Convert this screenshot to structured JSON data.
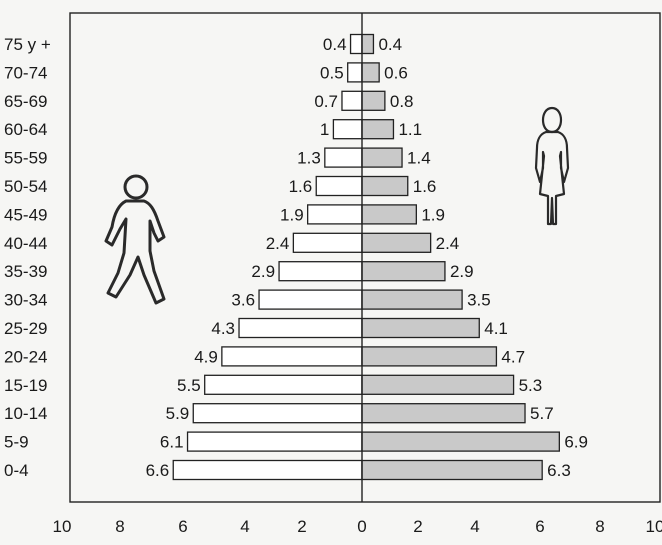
{
  "chart_data": {
    "type": "bar",
    "orientation": "horizontal",
    "layout": "population-pyramid",
    "categories": [
      "75 y +",
      "70-74",
      "65-69",
      "60-64",
      "55-59",
      "50-54",
      "45-49",
      "40-44",
      "35-39",
      "30-34",
      "25-29",
      "20-24",
      "15-19",
      "10-14",
      "5-9",
      "0-4"
    ],
    "series": [
      {
        "side": "left",
        "values": [
          0.4,
          0.5,
          0.7,
          1,
          1.3,
          1.6,
          1.9,
          2.4,
          2.9,
          3.6,
          4.3,
          4.9,
          5.5,
          5.9,
          6.1,
          6.6
        ],
        "labels": [
          "0.4",
          "0.5",
          "0.7",
          "1",
          "1.3",
          "1.6",
          "1.9",
          "2.4",
          "2.9",
          "3.6",
          "4.3",
          "4.9",
          "5.5",
          "5.9",
          "6.1",
          "6.6"
        ],
        "color": "#ffffff",
        "icon": "male-figure-icon"
      },
      {
        "side": "right",
        "values": [
          0.4,
          0.6,
          0.8,
          1.1,
          1.4,
          1.6,
          1.9,
          2.4,
          2.9,
          3.5,
          4.1,
          4.7,
          5.3,
          5.7,
          6.9,
          6.3
        ],
        "labels": [
          "0.4",
          "0.6",
          "0.8",
          "1.1",
          "1.4",
          "1.6",
          "1.9",
          "2.4",
          "2.9",
          "3.5",
          "4.1",
          "4.7",
          "5.3",
          "5.7",
          "6.9",
          "6.3"
        ],
        "color": "#c9c9c9",
        "icon": "female-figure-icon"
      }
    ],
    "x_ticks": [
      "10",
      "8",
      "6",
      "4",
      "2",
      "0",
      "2",
      "4",
      "6",
      "8",
      "10"
    ],
    "xlim_each_side": [
      0,
      10
    ],
    "title": "",
    "xlabel": "",
    "ylabel": "",
    "grid": false,
    "legend": "none"
  }
}
